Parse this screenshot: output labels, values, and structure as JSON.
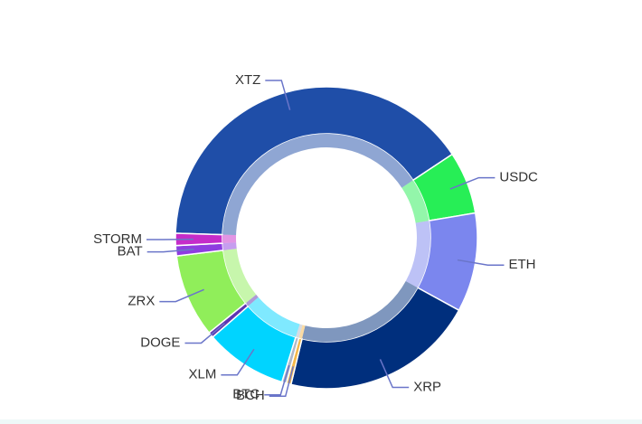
{
  "chart_data": {
    "type": "donut",
    "categories": [
      "XTZ",
      "USDC",
      "ETH",
      "XRP",
      "BCH",
      "BTC",
      "XLM",
      "DOGE",
      "ZRX",
      "BAT",
      "STORM"
    ],
    "values": [
      40.2,
      6.7,
      10.6,
      20.8,
      0.5,
      0.5,
      8.8,
      0.6,
      8.9,
      1.1,
      1.3
    ],
    "colors": [
      "#1f4ea8",
      "#27ee56",
      "#7b86ee",
      "#002f7d",
      "#f5b84a",
      "#b0b8c8",
      "#00d4ff",
      "#5e35b1",
      "#90ee5a",
      "#8e3de0",
      "#c52cc9"
    ]
  }
}
